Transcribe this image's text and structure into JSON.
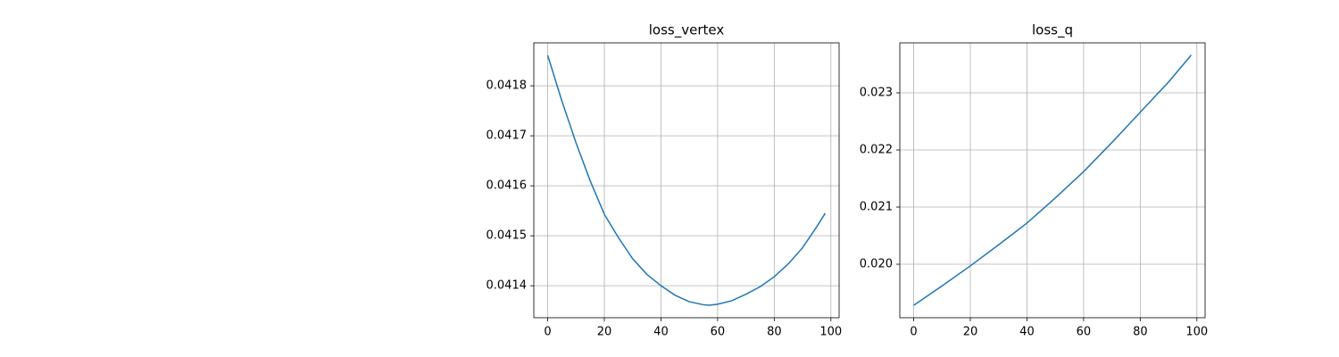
{
  "chart_data": [
    {
      "type": "line",
      "title": "loss_vertex",
      "x": [
        0,
        5,
        10,
        15,
        20,
        25,
        30,
        35,
        40,
        45,
        50,
        55,
        57,
        60,
        65,
        70,
        75,
        80,
        85,
        90,
        95,
        98
      ],
      "values": [
        0.041861,
        0.04177,
        0.041686,
        0.04161,
        0.041543,
        0.041496,
        0.041454,
        0.041423,
        0.0414,
        0.041381,
        0.041368,
        0.041362,
        0.041361,
        0.041363,
        0.04137,
        0.041383,
        0.041398,
        0.041418,
        0.041444,
        0.041476,
        0.041518,
        0.041545
      ],
      "color": "#1f77b4",
      "xlim": [
        -4.9,
        102.9
      ],
      "xticks": [
        0,
        20,
        40,
        60,
        80,
        100
      ],
      "ylim": [
        0.041336,
        0.041886
      ],
      "yticks": [
        0.0414,
        0.0415,
        0.0416,
        0.0417,
        0.0418
      ],
      "grid": true
    },
    {
      "type": "line",
      "title": "loss_q",
      "x": [
        0,
        10,
        20,
        30,
        40,
        50,
        60,
        70,
        80,
        90,
        98
      ],
      "values": [
        0.01928,
        0.01962,
        0.01997,
        0.02034,
        0.02072,
        0.02116,
        0.02162,
        0.02213,
        0.02266,
        0.02319,
        0.02366
      ],
      "color": "#1f77b4",
      "xlim": [
        -4.9,
        102.9
      ],
      "xticks": [
        0,
        20,
        40,
        60,
        80,
        100
      ],
      "ylim": [
        0.019063,
        0.023875
      ],
      "yticks": [
        {
          "value": 0.02,
          "label": "0.020"
        },
        0.021,
        0.022,
        0.023
      ],
      "grid": true
    }
  ]
}
